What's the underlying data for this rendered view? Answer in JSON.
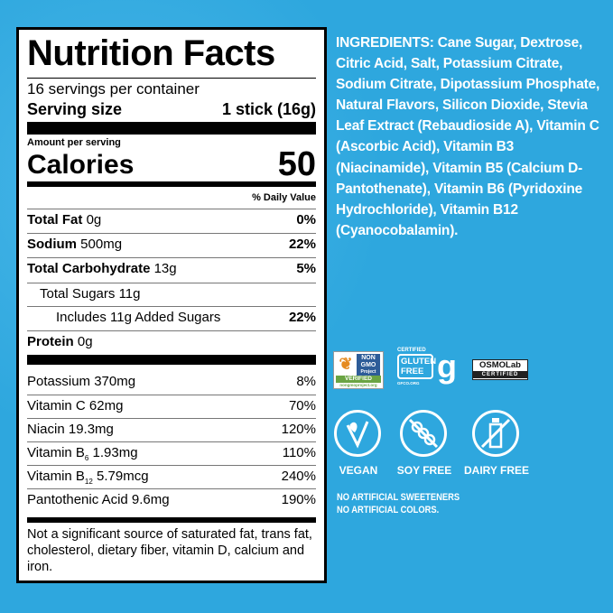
{
  "nutrition": {
    "title": "Nutrition Facts",
    "servings": "16 servings per container",
    "serving_size_label": "Serving size",
    "serving_size_value": "1 stick (16g)",
    "amount_per_serving": "Amount per serving",
    "calories_label": "Calories",
    "calories_value": "50",
    "dv_header": "% Daily Value",
    "rows": [
      {
        "name": "Total Fat",
        "amount": "0g",
        "dv": "0%"
      },
      {
        "name": "Sodium",
        "amount": "500mg",
        "dv": "22%"
      },
      {
        "name": "Total Carbohydrate",
        "amount": "13g",
        "dv": "5%"
      },
      {
        "name": "Total Sugars",
        "amount": "11g",
        "dv": ""
      },
      {
        "name": "Includes 11g Added Sugars",
        "amount": "",
        "dv": "22%"
      },
      {
        "name": "Protein",
        "amount": "0g",
        "dv": ""
      }
    ],
    "vitamins": [
      {
        "name": "Potassium",
        "amount": "370mg",
        "dv": "8%"
      },
      {
        "name": "Vitamin C",
        "amount": "62mg",
        "dv": "70%"
      },
      {
        "name": "Niacin",
        "amount": "19.3mg",
        "dv": "120%"
      },
      {
        "name": "Vitamin B",
        "sub": "6",
        "amount": "1.93mg",
        "dv": "110%"
      },
      {
        "name": "Vitamin B",
        "sub": "12",
        "amount": "5.79mcg",
        "dv": "240%"
      },
      {
        "name": "Pantothenic Acid",
        "amount": "9.6mg",
        "dv": "190%"
      }
    ],
    "footnote": "Not a significant source of saturated fat, trans fat, cholesterol, dietary fiber, vitamin D, calcium and iron."
  },
  "ingredients": "INGREDIENTS: Cane Sugar, Dextrose, Citric Acid, Salt, Potassium Citrate, Sodium Citrate, Dipotassium Phosphate, Natural Flavors, Silicon Dioxide, Stevia Leaf Extract (Rebaudioside A), Vitamin C (Ascorbic Acid), Vitamin B3 (Niacinamide), Vitamin B5 (Calcium D-Pantothenate), Vitamin B6 (Pyridoxine Hydrochloride), Vitamin B12 (Cyanocobalamin).",
  "certifications": {
    "nongmo": {
      "line1": "NON",
      "line2": "GMO",
      "line3": "Project",
      "line4": "VERIFIED",
      "url": "nongmoproject.org"
    },
    "gluten": {
      "top": "CERTIFIED",
      "l1": "GLUTEN",
      "l2": "FREE",
      "url": "GFCO.ORG"
    },
    "osmo": {
      "name": "OSMOLab",
      "sub": "CERTIFIED"
    }
  },
  "icons": [
    {
      "icon": "vegan-leaf-icon",
      "label": "VEGAN"
    },
    {
      "icon": "soy-free-icon",
      "label": "SOY FREE"
    },
    {
      "icon": "dairy-free-icon",
      "label": "DAIRY FREE"
    }
  ],
  "claims": [
    "NO ARTIFICIAL SWEETENERS",
    "NO ARTIFICIAL COLORS."
  ],
  "colors": {
    "background": "#2ea7de",
    "label": "#ffffff",
    "text": "#000000"
  }
}
